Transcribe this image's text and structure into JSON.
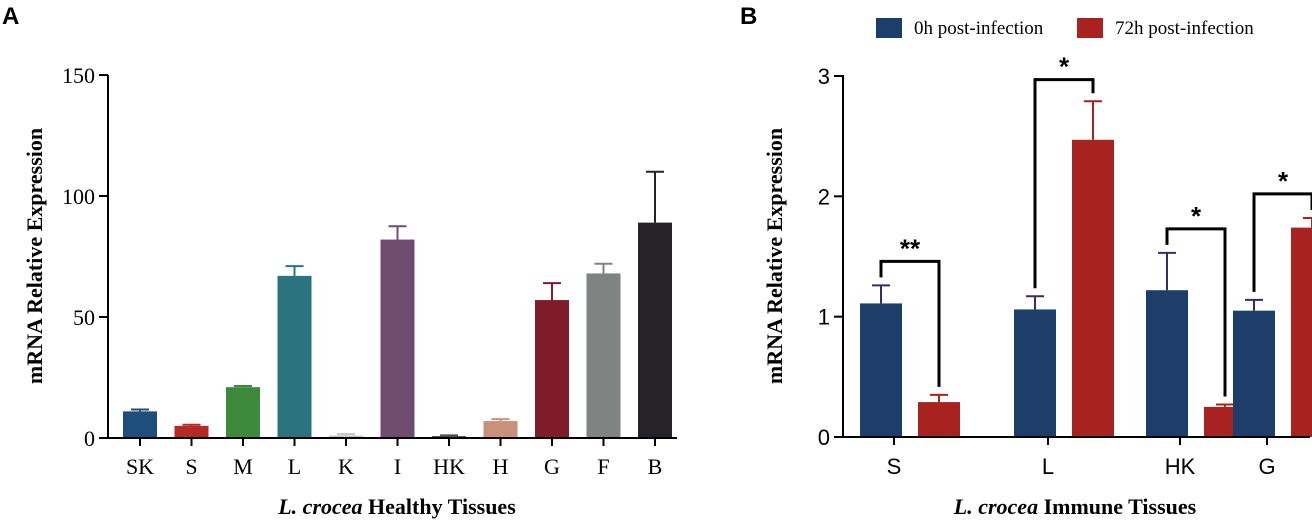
{
  "chart_data": [
    {
      "panel": "A",
      "type": "bar",
      "title": "",
      "xlabel_italic": "L. crocea",
      "xlabel_rest": " Healthy Tissues",
      "ylabel": "mRNA Relative Expression",
      "ylim": [
        0,
        150
      ],
      "yticks": [
        0,
        50,
        100,
        150
      ],
      "categories": [
        "SK",
        "S",
        "M",
        "L",
        "K",
        "I",
        "HK",
        "H",
        "G",
        "F",
        "B"
      ],
      "values": [
        11,
        5,
        21,
        67,
        1,
        82,
        0.8,
        7,
        57,
        68,
        89
      ],
      "errors": [
        0.8,
        0.5,
        0.5,
        4,
        0.6,
        5.5,
        0.3,
        0.8,
        7,
        4,
        21
      ],
      "colors": [
        "#1f4e7a",
        "#b52a26",
        "#3d8a3d",
        "#2a7480",
        "#c4c4c4",
        "#6f4c70",
        "#4d4d4d",
        "#c8917c",
        "#7e1c2b",
        "#7f8382",
        "#252328"
      ]
    },
    {
      "panel": "B",
      "type": "bar",
      "title": "",
      "xlabel_italic": "L. crocea",
      "xlabel_rest": " Immune Tissues",
      "ylabel": "mRNA Relative Expression",
      "ylim": [
        0,
        3
      ],
      "yticks": [
        0,
        1,
        2,
        3
      ],
      "categories": [
        "S",
        "L",
        "HK",
        "G"
      ],
      "series": [
        {
          "name": "0h post-infection",
          "color": "#1e3e6a",
          "values": [
            1.11,
            1.06,
            1.22,
            1.05
          ],
          "errors": [
            0.15,
            0.11,
            0.31,
            0.09
          ]
        },
        {
          "name": "72h post-infection",
          "color": "#a8231f",
          "values": [
            0.29,
            2.47,
            0.25,
            1.74
          ],
          "errors": [
            0.06,
            0.32,
            0.02,
            0.08
          ]
        }
      ],
      "significance": [
        {
          "category": "S",
          "label": "**",
          "y": 1.46
        },
        {
          "category": "L",
          "label": "*",
          "y": 2.97
        },
        {
          "category": "HK",
          "label": "*",
          "y": 1.73
        },
        {
          "category": "G",
          "label": "*",
          "y": 2.02
        }
      ],
      "legend_position": "top"
    }
  ]
}
